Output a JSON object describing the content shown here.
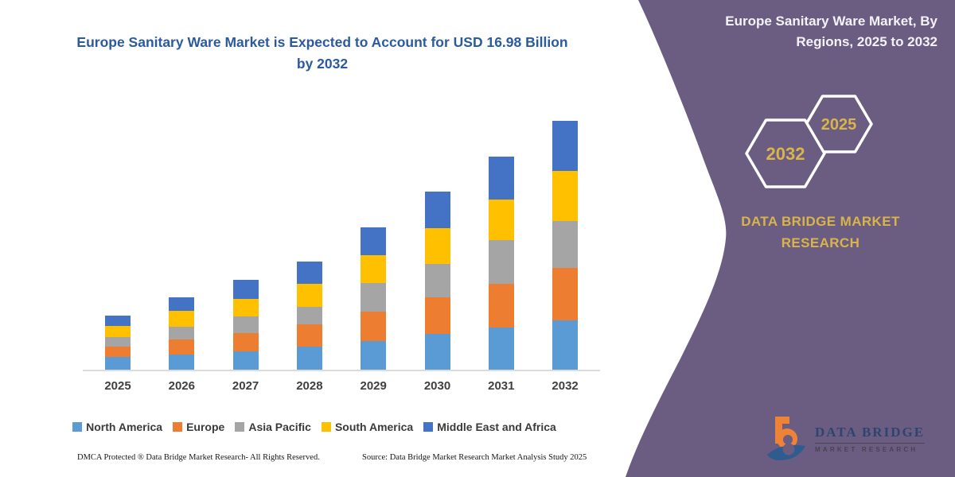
{
  "title": "Europe Sanitary Ware Market is Expected to Account for USD 16.98 Billion by 2032",
  "panel": {
    "heading": "Europe Sanitary Ware Market, By Regions, 2025 to 2032",
    "hex_large": "2032",
    "hex_small": "2025",
    "brand": "DATA BRIDGE MARKET RESEARCH",
    "background_color": "#6A5D81",
    "accent_gold": "#d9b44a"
  },
  "footer": {
    "left": "DMCA Protected ® Data Bridge Market Research-  All Rights Reserved.",
    "right": "Source: Data Bridge Market Research  Market Analysis Study 2025"
  },
  "logo": {
    "name": "DATA BRIDGE",
    "subtitle": "MARKET RESEARCH"
  },
  "chart_data": {
    "type": "bar",
    "stacked": true,
    "title": "Europe Sanitary Ware Market is Expected to Account for USD 16.98 Billion by 2032",
    "unit": "USD Billion",
    "categories": [
      "2025",
      "2026",
      "2027",
      "2028",
      "2029",
      "2030",
      "2031",
      "2032"
    ],
    "series": [
      {
        "name": "North America",
        "color": "#5B9BD5",
        "values": [
          0.89,
          1.01,
          1.26,
          1.59,
          1.98,
          2.44,
          2.89,
          3.35
        ]
      },
      {
        "name": "Europe",
        "color": "#ED7D31",
        "values": [
          0.69,
          1.03,
          1.26,
          1.48,
          1.98,
          2.49,
          2.98,
          3.57
        ]
      },
      {
        "name": "Asia Pacific",
        "color": "#A5A5A5",
        "values": [
          0.67,
          0.9,
          1.13,
          1.21,
          1.95,
          2.3,
          2.98,
          3.22
        ]
      },
      {
        "name": "South America",
        "color": "#FFC000",
        "values": [
          0.72,
          1.05,
          1.17,
          1.56,
          1.88,
          2.44,
          2.77,
          3.4
        ]
      },
      {
        "name": "Middle East and Africa",
        "color": "#4472C4",
        "values": [
          0.72,
          0.94,
          1.3,
          1.54,
          1.92,
          2.48,
          2.92,
          3.44
        ]
      }
    ],
    "totals": [
      3.69,
      4.93,
      6.12,
      7.38,
      9.71,
      12.15,
      14.54,
      16.98
    ],
    "ylim": [
      0,
      17
    ],
    "gridlines": false,
    "y_axis_visible": false,
    "legend_position": "bottom"
  }
}
